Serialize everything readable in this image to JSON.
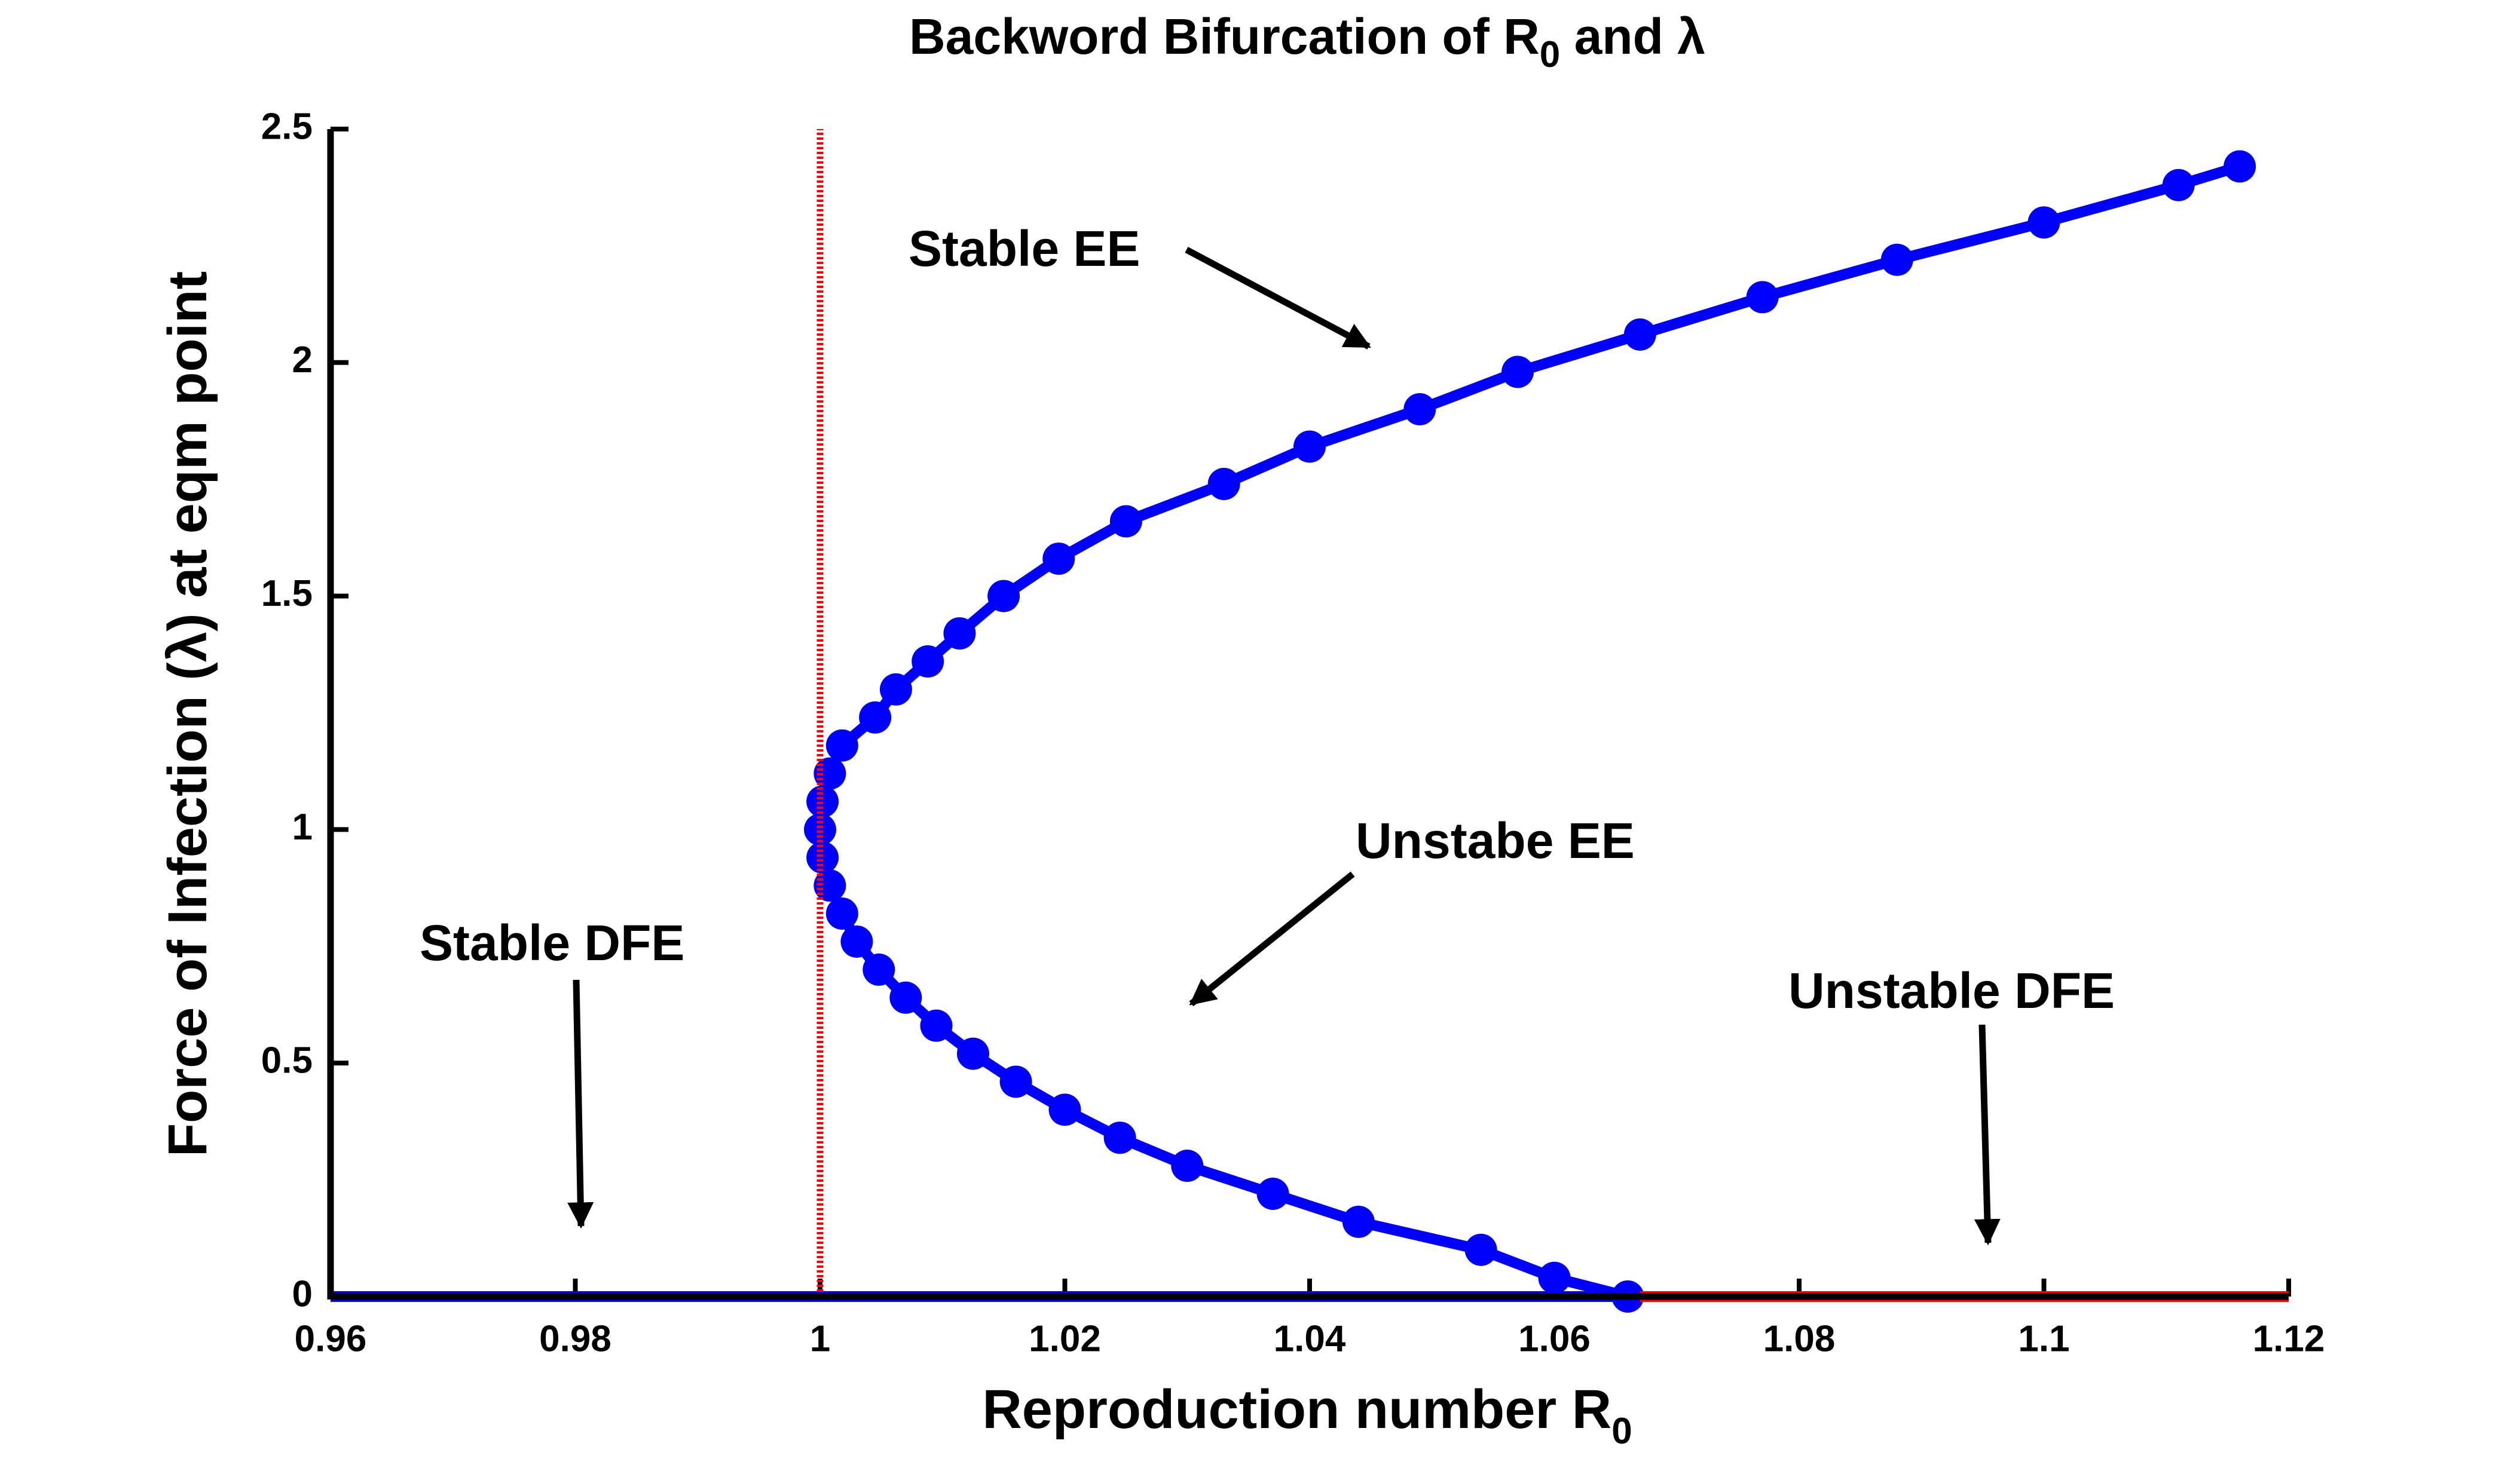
{
  "chart_data": {
    "type": "line",
    "title": {
      "main": "Backword Bifurcation of R",
      "sub": "0",
      "tail": " and λ"
    },
    "xlabel": {
      "main": "Reproduction number R",
      "sub": "0"
    },
    "ylabel": "Force of Infection (λ) at eqm point",
    "xlim": [
      0.96,
      1.12
    ],
    "ylim": [
      0,
      2.5
    ],
    "xticks": [
      0.96,
      0.98,
      1,
      1.02,
      1.04,
      1.06,
      1.08,
      1.1,
      1.12
    ],
    "yticks": [
      0,
      0.5,
      1,
      1.5,
      2,
      2.5
    ],
    "grid": false,
    "series": [
      {
        "color": "#0000ff",
        "marker": true,
        "x": [
          1.066,
          1.06,
          1.054,
          1.044,
          1.037,
          1.03,
          1.0245,
          1.02,
          1.016,
          1.0125,
          1.0095,
          1.007,
          1.0048,
          1.003,
          1.0018,
          1.0008,
          1.0002,
          1.0,
          1.0002,
          1.0008,
          1.0018,
          1.0045,
          1.0062,
          1.0088,
          1.0114,
          1.015,
          1.0195,
          1.025,
          1.033,
          1.04,
          1.049,
          1.057,
          1.067,
          1.077,
          1.088,
          1.1,
          1.111,
          1.116
        ],
        "values": [
          0,
          0.04,
          0.1,
          0.16,
          0.22,
          0.28,
          0.34,
          0.4,
          0.46,
          0.52,
          0.58,
          0.64,
          0.7,
          0.76,
          0.82,
          0.88,
          0.94,
          1.0,
          1.06,
          1.12,
          1.18,
          1.24,
          1.3,
          1.36,
          1.42,
          1.5,
          1.58,
          1.66,
          1.74,
          1.82,
          1.9,
          1.98,
          2.06,
          2.14,
          2.22,
          2.3,
          2.38,
          2.42
        ]
      },
      {
        "color": "#0000ff",
        "marker": false,
        "x": [
          0.96,
          1.067
        ],
        "values": [
          0,
          0
        ]
      },
      {
        "color": "#ff0000",
        "marker": false,
        "x": [
          1.067,
          1.12
        ],
        "values": [
          0,
          0
        ]
      },
      {
        "color": "#ff0000",
        "marker": false,
        "dotted": true,
        "x": [
          1,
          1
        ],
        "values": [
          0,
          2.5
        ]
      }
    ],
    "annotations": [
      "Stable EE",
      "Unstabe EE",
      "Stable DFE",
      "Unstable DFE"
    ]
  }
}
